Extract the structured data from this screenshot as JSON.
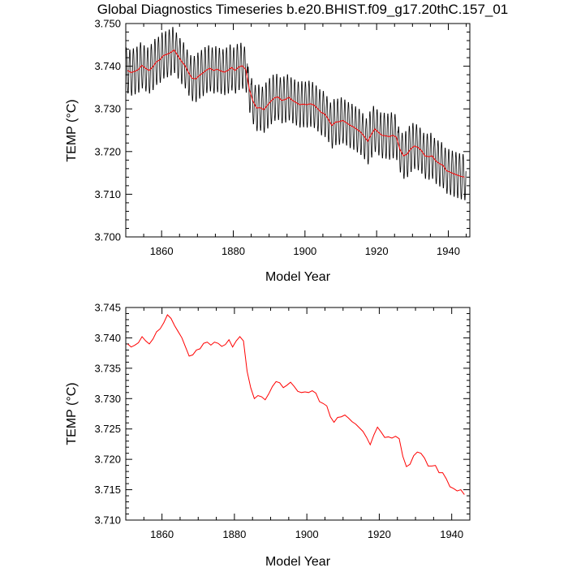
{
  "title": "Global Diagnostics Timeseries b.e20.BHIST.f09_g17.20thC.157_01",
  "colors": {
    "monthly": "#000000",
    "annual": "#ff0000",
    "axis": "#000000",
    "background": "#ffffff"
  },
  "chart_data": [
    {
      "type": "line",
      "xlabel": "Model Year",
      "ylabel": "TEMP (°C)",
      "xlim": [
        1850,
        1946
      ],
      "ylim": [
        3.7,
        3.75
      ],
      "xticks": [
        1860,
        1880,
        1900,
        1920,
        1940
      ],
      "yticks": [
        "3.700",
        "3.710",
        "3.720",
        "3.730",
        "3.740",
        "3.750"
      ],
      "series": [
        {
          "name": "monthly",
          "style": "seasonal-cycle",
          "annual_mean_series": "annual",
          "seasonal_amplitude": 0.0055,
          "resolution": "monthly"
        },
        {
          "name": "annual",
          "x_from": 1850,
          "x_step": 1,
          "values": [
            3.739,
            3.7385,
            3.7388,
            3.7392,
            3.7402,
            3.7395,
            3.739,
            3.7398,
            3.741,
            3.7415,
            3.7425,
            3.7428,
            3.7432,
            3.7438,
            3.7425,
            3.7412,
            3.7402,
            3.7385,
            3.7372,
            3.737,
            3.7378,
            3.7384,
            3.7391,
            3.7395,
            3.739,
            3.7393,
            3.7389,
            3.7386,
            3.739,
            3.7397,
            3.739,
            3.7398,
            3.7401,
            3.7392,
            3.7345,
            3.7318,
            3.7302,
            3.7303,
            3.7298,
            3.7308,
            3.7318,
            3.7326,
            3.7328,
            3.732,
            3.7322,
            3.7327,
            3.732,
            3.7315,
            3.731,
            3.7311,
            3.731,
            3.7312,
            3.7309,
            3.7301,
            3.7292,
            3.7288,
            3.7276,
            3.7261,
            3.7269,
            3.727,
            3.7273,
            3.7268,
            3.7262,
            3.7258,
            3.7252,
            3.7246,
            3.7236,
            3.7224,
            3.724,
            3.7253,
            3.7245,
            3.7238,
            3.7237,
            3.7235,
            3.7238,
            3.7234,
            3.7205,
            3.719,
            3.7194,
            3.7206,
            3.7213,
            3.721,
            3.7202,
            3.719,
            3.7188,
            3.719,
            3.7178,
            3.7172,
            3.7168,
            3.7155,
            3.7152,
            3.7148,
            3.7145,
            3.7142,
            3.714
          ]
        }
      ]
    },
    {
      "type": "line",
      "xlabel": "Model Year",
      "ylabel": "TEMP (°C)",
      "xlim": [
        1850,
        1945
      ],
      "ylim": [
        3.71,
        3.745
      ],
      "xticks": [
        1860,
        1880,
        1900,
        1920,
        1940
      ],
      "yticks": [
        "3.710",
        "3.715",
        "3.720",
        "3.725",
        "3.730",
        "3.735",
        "3.740",
        "3.745"
      ],
      "series": [
        {
          "name": "annual",
          "x_from": 1850,
          "x_step": 1,
          "values": [
            3.739,
            3.7385,
            3.7388,
            3.7392,
            3.7402,
            3.7395,
            3.739,
            3.7398,
            3.741,
            3.7415,
            3.7425,
            3.7438,
            3.7432,
            3.742,
            3.741,
            3.74,
            3.7385,
            3.737,
            3.7372,
            3.738,
            3.7382,
            3.7391,
            3.7393,
            3.7388,
            3.7393,
            3.7391,
            3.7386,
            3.7389,
            3.7397,
            3.7385,
            3.7395,
            3.7402,
            3.7395,
            3.7345,
            3.7318,
            3.73,
            3.7305,
            3.7303,
            3.7298,
            3.7308,
            3.732,
            3.7328,
            3.7326,
            3.7318,
            3.7322,
            3.7327,
            3.732,
            3.7312,
            3.731,
            3.7311,
            3.731,
            3.7313,
            3.7309,
            3.7295,
            3.7292,
            3.7288,
            3.727,
            3.7261,
            3.7269,
            3.727,
            3.7273,
            3.7268,
            3.7262,
            3.7258,
            3.7252,
            3.7246,
            3.7236,
            3.7224,
            3.724,
            3.7253,
            3.7245,
            3.7236,
            3.7237,
            3.7235,
            3.7238,
            3.7234,
            3.7205,
            3.7188,
            3.7192,
            3.7206,
            3.7212,
            3.721,
            3.7202,
            3.7189,
            3.7189,
            3.719,
            3.7178,
            3.7178,
            3.7168,
            3.7155,
            3.7152,
            3.7148,
            3.715,
            3.7142
          ]
        }
      ]
    }
  ]
}
